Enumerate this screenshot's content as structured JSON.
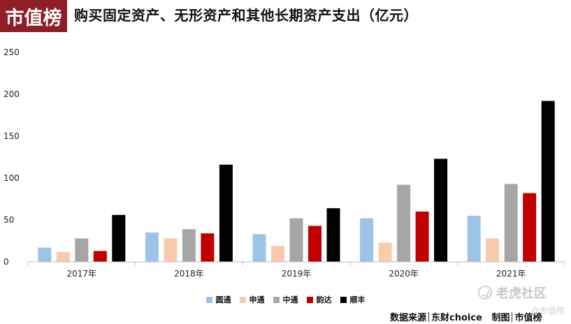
{
  "header": {
    "logo_text": "市值榜",
    "title": "购买固定资产、无形资产和其他长期资产支出（亿元）"
  },
  "chart_data": {
    "type": "bar",
    "title": "购买固定资产、无形资产和其他长期资产支出（亿元）",
    "xlabel": "",
    "ylabel": "",
    "categories": [
      "2017年",
      "2018年",
      "2019年",
      "2020年",
      "2021年"
    ],
    "ylim": [
      0,
      250
    ],
    "yticks": [
      0,
      50,
      100,
      150,
      200,
      250
    ],
    "grid": false,
    "legend_position": "bottom",
    "series": [
      {
        "name": "圆通",
        "color": "#9dc3e6",
        "values": [
          17,
          35,
          33,
          52,
          55
        ]
      },
      {
        "name": "申通",
        "color": "#f8cbad",
        "values": [
          12,
          28,
          19,
          23,
          28
        ]
      },
      {
        "name": "中通",
        "color": "#a6a6a6",
        "values": [
          28,
          39,
          52,
          92,
          93
        ]
      },
      {
        "name": "韵达",
        "color": "#c00000",
        "values": [
          13,
          34,
          43,
          60,
          82
        ]
      },
      {
        "name": "顺丰",
        "color": "#000000",
        "values": [
          56,
          116,
          64,
          123,
          192
        ]
      }
    ]
  },
  "footer": {
    "source_label": "数据来源",
    "source_value": "东财choice",
    "made_by_label": "制图",
    "made_by_value": "市值榜"
  },
  "watermark": {
    "brand": "老虎社区",
    "handle": "@市值榜"
  }
}
